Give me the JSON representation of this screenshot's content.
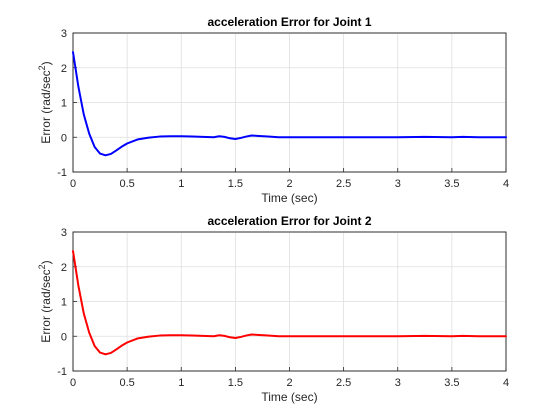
{
  "chart_data": [
    {
      "type": "line",
      "title": "acceleration Error for Joint 1",
      "xlabel": "Time (sec)",
      "ylabel": "Error (rad/sec",
      "ylabel_sup": "2",
      "ylabel_end": ")",
      "xlim": [
        0,
        4
      ],
      "ylim": [
        -1,
        3
      ],
      "xticks": [
        "0",
        "0.5",
        "1",
        "1.5",
        "2",
        "2.5",
        "3",
        "3.5",
        "4"
      ],
      "yticks": [
        "-1",
        "0",
        "1",
        "2",
        "3"
      ],
      "grid": true,
      "series": [
        {
          "color": "#0000ff",
          "x": [
            0,
            0.05,
            0.1,
            0.15,
            0.2,
            0.25,
            0.3,
            0.35,
            0.4,
            0.45,
            0.5,
            0.6,
            0.7,
            0.8,
            0.9,
            1.0,
            1.1,
            1.2,
            1.3,
            1.35,
            1.4,
            1.45,
            1.5,
            1.55,
            1.6,
            1.65,
            1.7,
            1.8,
            1.9,
            2.0,
            2.5,
            3.0,
            3.25,
            3.5,
            3.6,
            3.75,
            4.0
          ],
          "y": [
            2.45,
            1.45,
            0.65,
            0.1,
            -0.28,
            -0.47,
            -0.52,
            -0.48,
            -0.38,
            -0.27,
            -0.18,
            -0.06,
            -0.01,
            0.02,
            0.03,
            0.03,
            0.02,
            0.01,
            0.0,
            0.03,
            0.01,
            -0.03,
            -0.05,
            -0.02,
            0.02,
            0.05,
            0.04,
            0.02,
            0.0,
            0.0,
            0.0,
            0.0,
            0.01,
            0.0,
            0.01,
            0.0,
            0.0
          ]
        }
      ]
    },
    {
      "type": "line",
      "title": "acceleration Error for Joint 2",
      "xlabel": "Time (sec)",
      "ylabel": "Error (rad/sec",
      "ylabel_sup": "2",
      "ylabel_end": ")",
      "xlim": [
        0,
        4
      ],
      "ylim": [
        -1,
        3
      ],
      "xticks": [
        "0",
        "0.5",
        "1",
        "1.5",
        "2",
        "2.5",
        "3",
        "3.5",
        "4"
      ],
      "yticks": [
        "-1",
        "0",
        "1",
        "2",
        "3"
      ],
      "grid": true,
      "series": [
        {
          "color": "#ff0000",
          "x": [
            0,
            0.05,
            0.1,
            0.15,
            0.2,
            0.25,
            0.3,
            0.35,
            0.4,
            0.45,
            0.5,
            0.6,
            0.7,
            0.8,
            0.9,
            1.0,
            1.1,
            1.2,
            1.3,
            1.35,
            1.4,
            1.45,
            1.5,
            1.55,
            1.6,
            1.65,
            1.7,
            1.8,
            1.9,
            2.0,
            2.5,
            3.0,
            3.25,
            3.5,
            3.6,
            3.75,
            4.0
          ],
          "y": [
            2.45,
            1.45,
            0.65,
            0.1,
            -0.28,
            -0.47,
            -0.52,
            -0.48,
            -0.38,
            -0.27,
            -0.18,
            -0.06,
            -0.01,
            0.02,
            0.03,
            0.03,
            0.02,
            0.01,
            0.0,
            0.03,
            0.01,
            -0.03,
            -0.05,
            -0.02,
            0.02,
            0.05,
            0.04,
            0.02,
            0.0,
            0.0,
            0.0,
            0.0,
            0.01,
            0.0,
            0.01,
            0.0,
            0.0
          ]
        }
      ]
    }
  ]
}
